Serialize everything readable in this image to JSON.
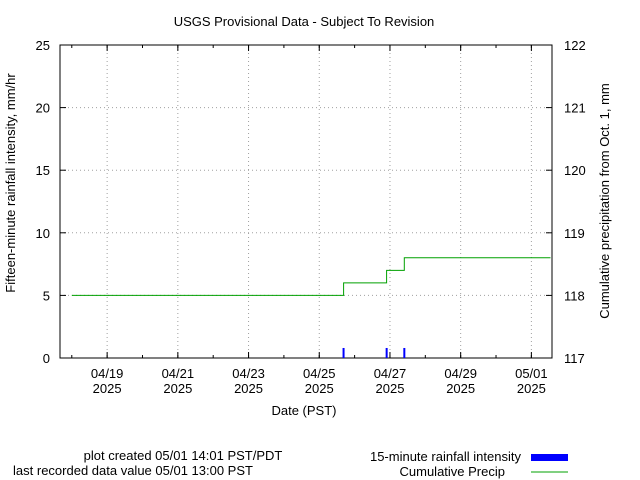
{
  "chart_data": {
    "type": "line",
    "title": "USGS Provisional Data - Subject To Revision",
    "xlabel": "Date (PST)",
    "ylabel_left": "Fifteen-minute rainfall intensity, mm/hr",
    "ylabel_right": "Cumulative precipitation from Oct. 1, mm",
    "x_tick_labels": [
      {
        "date": "04/19",
        "year": "2025"
      },
      {
        "date": "04/21",
        "year": "2025"
      },
      {
        "date": "04/23",
        "year": "2025"
      },
      {
        "date": "04/25",
        "year": "2025"
      },
      {
        "date": "04/27",
        "year": "2025"
      },
      {
        "date": "04/29",
        "year": "2025"
      },
      {
        "date": "05/01",
        "year": "2025"
      }
    ],
    "x_range": [
      "2025-04-17T16:00",
      "2025-05-01T14:00"
    ],
    "ylim_left": [
      0,
      25
    ],
    "yticks_left": [
      "0",
      "5",
      "10",
      "15",
      "20",
      "25"
    ],
    "ylim_right": [
      117,
      122
    ],
    "yticks_right": [
      "117",
      "118",
      "119",
      "120",
      "121",
      "122"
    ],
    "grid": true,
    "series": [
      {
        "name": "15-minute rainfall intensity",
        "axis": "left",
        "style": "bar",
        "color": "#0000ff",
        "points": [
          {
            "x": "2025-04-25T16:30",
            "y": 0.8
          },
          {
            "x": "2025-04-26T21:45",
            "y": 0.8
          },
          {
            "x": "2025-04-27T09:45",
            "y": 0.8
          }
        ]
      },
      {
        "name": "Cumulative Precip",
        "axis": "right",
        "style": "step",
        "color": "#00a000",
        "points": [
          {
            "x": "2025-04-18T00:00",
            "y": 118.0
          },
          {
            "x": "2025-04-25T16:30",
            "y": 118.2
          },
          {
            "x": "2025-04-26T21:45",
            "y": 118.4
          },
          {
            "x": "2025-04-27T09:45",
            "y": 118.6
          },
          {
            "x": "2025-05-01T13:00",
            "y": 118.6
          }
        ]
      }
    ]
  },
  "footer": {
    "created": "plot created 05/01 14:01 PST/PDT",
    "last_value": "last recorded data value 05/01 13:00 PST"
  }
}
